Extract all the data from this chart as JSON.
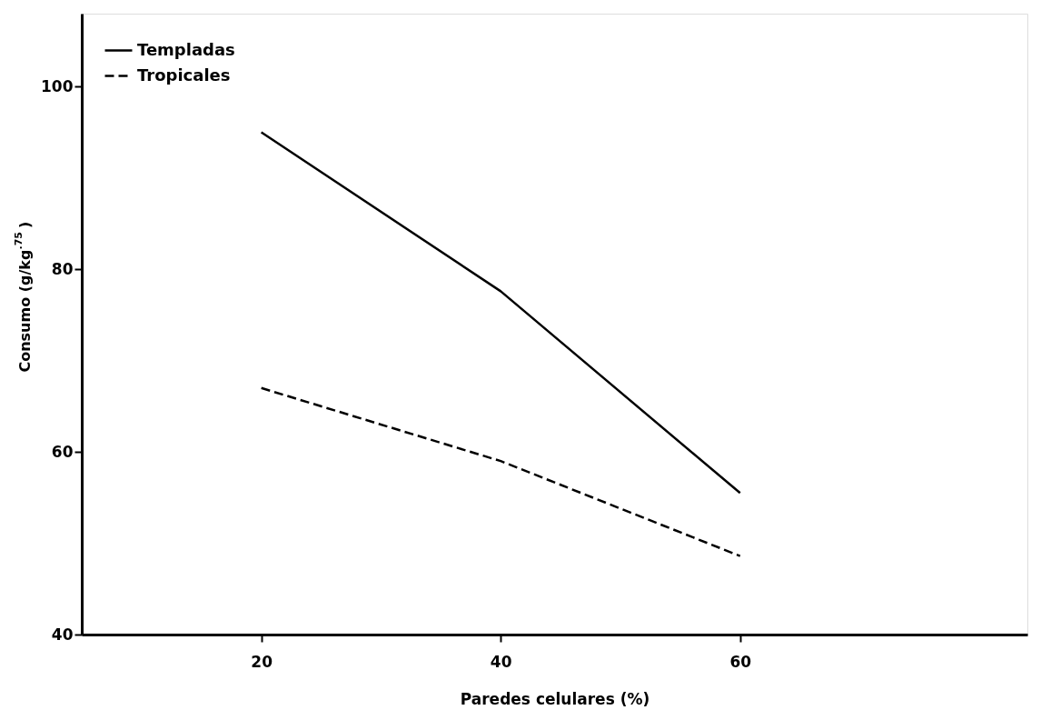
{
  "chart_data": {
    "type": "line",
    "xlabel": "Paredes celulares (%)",
    "ylabel": "Consumo (g/kg$^{.75}$)",
    "x": [
      20,
      40,
      60
    ],
    "series": [
      {
        "name": "Templadas",
        "color": "#000000",
        "line_style": "solid",
        "values": [
          95,
          77.6,
          55.5
        ]
      },
      {
        "name": "Tropicales",
        "color": "#000000",
        "line_style": "dashed",
        "values": [
          67,
          59,
          48.6
        ]
      }
    ],
    "xlim": [
      5,
      84
    ],
    "xticks": [
      20,
      40,
      60
    ],
    "ylim": [
      40,
      108
    ],
    "yticks": [
      40,
      60,
      80,
      100
    ],
    "grid": false,
    "legend": "top left",
    "marker": "none"
  }
}
